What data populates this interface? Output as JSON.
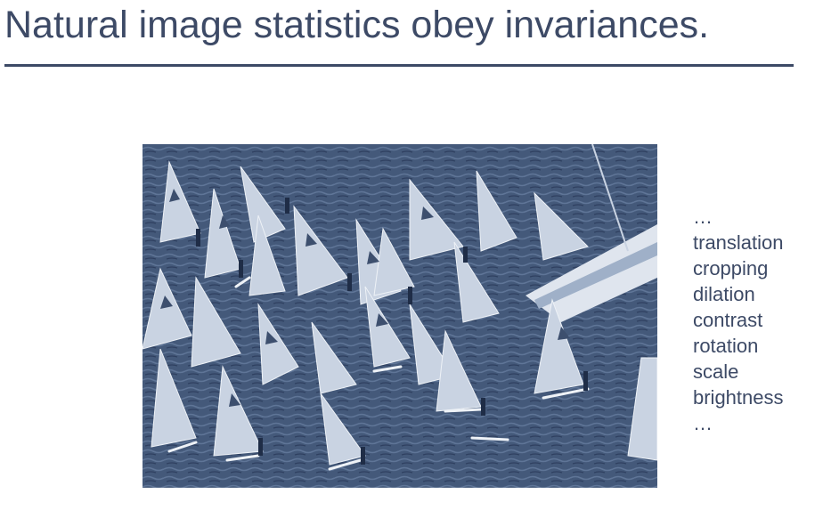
{
  "slide": {
    "title": "Natural image statistics obey invariances."
  },
  "photo": {
    "alt_subject": "windsurfers-regatta",
    "duotone_dark": "#3d4f6e",
    "duotone_light": "#c9d3e2"
  },
  "invariances": {
    "items": [
      "…",
      "translation",
      "cropping",
      "dilation",
      "contrast",
      "rotation",
      "scale",
      "brightness",
      "…"
    ]
  },
  "colors": {
    "text": "#3d4a66",
    "rule": "#3d4a66",
    "background": "#ffffff"
  }
}
